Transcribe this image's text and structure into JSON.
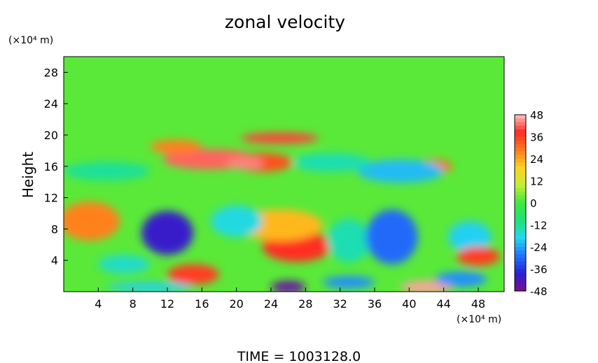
{
  "chart_data": {
    "type": "heatmap",
    "title": "zonal velocity",
    "ylabel": "Height",
    "y_unit_label": "(×10⁴ m)",
    "x_unit_label": "(×10⁴ m)",
    "xlim": [
      0,
      51
    ],
    "ylim": [
      0,
      30
    ],
    "x_ticks": [
      "4",
      "8",
      "12",
      "16",
      "20",
      "24",
      "28",
      "32",
      "36",
      "40",
      "44",
      "48"
    ],
    "x_tick_values": [
      4,
      8,
      12,
      16,
      20,
      24,
      28,
      32,
      36,
      40,
      44,
      48
    ],
    "y_ticks": [
      "4",
      "8",
      "12",
      "16",
      "20",
      "24",
      "28"
    ],
    "y_tick_values": [
      4,
      8,
      12,
      16,
      20,
      24,
      28
    ],
    "colorbar": {
      "labels": [
        "48",
        "36",
        "24",
        "12",
        "0",
        "-12",
        "-24",
        "-36",
        "-48"
      ],
      "values": [
        48,
        36,
        24,
        12,
        0,
        -12,
        -24,
        -36,
        -48
      ],
      "range": [
        -48,
        48
      ]
    },
    "colormap": [
      "#7a0f8f",
      "#2a1fd6",
      "#1f73ff",
      "#21d8f0",
      "#1ee37a",
      "#3ee83a",
      "#c4ee36",
      "#ffd21e",
      "#ff7a1e",
      "#ff2a20",
      "#ffc2c2"
    ],
    "background_value": 2,
    "regions": [
      {
        "x": 25,
        "y": 19.6,
        "rx": 4.5,
        "ry": 0.7,
        "v": 40
      },
      {
        "x": 17,
        "y": 16.9,
        "rx": 5.5,
        "ry": 1.3,
        "v": 42
      },
      {
        "x": 23,
        "y": 16.5,
        "rx": 3.5,
        "ry": 1.2,
        "v": 34
      },
      {
        "x": 21,
        "y": 16.4,
        "rx": 2.2,
        "ry": 0.8,
        "v": 44
      },
      {
        "x": 13,
        "y": 18.5,
        "rx": 3.0,
        "ry": 0.9,
        "v": 28
      },
      {
        "x": 43,
        "y": 16.0,
        "rx": 2.0,
        "ry": 0.9,
        "v": 30
      },
      {
        "x": 39,
        "y": 15.4,
        "rx": 5.0,
        "ry": 1.5,
        "v": -22
      },
      {
        "x": 31,
        "y": 16.5,
        "rx": 4.5,
        "ry": 1.2,
        "v": -14
      },
      {
        "x": 5,
        "y": 15.4,
        "rx": 5.0,
        "ry": 1.2,
        "v": -12
      },
      {
        "x": 3,
        "y": 9.0,
        "rx": 3.5,
        "ry": 2.5,
        "v": 28
      },
      {
        "x": 12,
        "y": 7.5,
        "rx": 3.0,
        "ry": 2.8,
        "v": -40
      },
      {
        "x": 27,
        "y": 5.8,
        "rx": 4.0,
        "ry": 2.0,
        "v": 38
      },
      {
        "x": 25,
        "y": 8.5,
        "rx": 5.0,
        "ry": 2.0,
        "v": 22
      },
      {
        "x": 20,
        "y": 9.0,
        "rx": 3.0,
        "ry": 2.0,
        "v": -18
      },
      {
        "x": 33,
        "y": 6.5,
        "rx": 2.5,
        "ry": 2.8,
        "v": -14
      },
      {
        "x": 38,
        "y": 7.0,
        "rx": 3.0,
        "ry": 3.5,
        "v": -30
      },
      {
        "x": 47,
        "y": 7.0,
        "rx": 2.5,
        "ry": 2.0,
        "v": -20
      },
      {
        "x": 48,
        "y": 4.5,
        "rx": 2.5,
        "ry": 1.2,
        "v": 36
      },
      {
        "x": 15,
        "y": 2.2,
        "rx": 3.0,
        "ry": 1.3,
        "v": 36
      },
      {
        "x": 7,
        "y": 3.5,
        "rx": 3.0,
        "ry": 1.2,
        "v": -16
      },
      {
        "x": 26,
        "y": 0.6,
        "rx": 2.0,
        "ry": 0.8,
        "v": -46
      },
      {
        "x": 42,
        "y": 0.6,
        "rx": 3.0,
        "ry": 0.8,
        "v": 46
      },
      {
        "x": 46,
        "y": 1.6,
        "rx": 3.0,
        "ry": 1.0,
        "v": -26
      },
      {
        "x": 10,
        "y": 0.6,
        "rx": 5.0,
        "ry": 0.6,
        "v": -20
      },
      {
        "x": 33,
        "y": 1.2,
        "rx": 3.0,
        "ry": 0.8,
        "v": -26
      }
    ]
  },
  "footer": {
    "time_text": "TIME = 1003128.0"
  }
}
